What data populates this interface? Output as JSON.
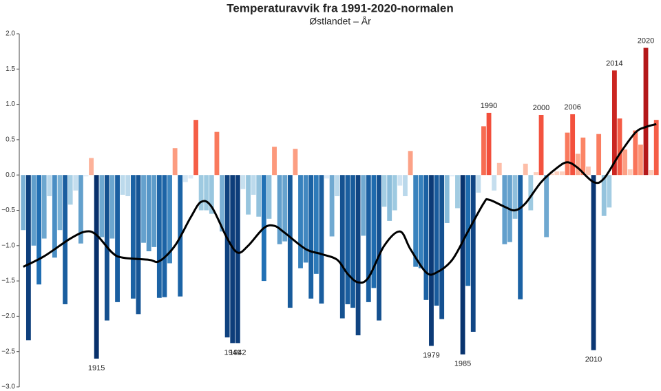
{
  "chart_data": {
    "type": "bar",
    "title": "Temperaturavvik fra 1991-2020-normalen",
    "subtitle": "Østlandet – År",
    "x": [
      1901,
      1902,
      1903,
      1904,
      1905,
      1906,
      1907,
      1908,
      1909,
      1910,
      1911,
      1912,
      1913,
      1914,
      1915,
      1916,
      1917,
      1918,
      1919,
      1920,
      1921,
      1922,
      1923,
      1924,
      1925,
      1926,
      1927,
      1928,
      1929,
      1930,
      1931,
      1932,
      1933,
      1934,
      1935,
      1936,
      1937,
      1938,
      1939,
      1940,
      1941,
      1942,
      1943,
      1944,
      1945,
      1946,
      1947,
      1948,
      1949,
      1950,
      1951,
      1952,
      1953,
      1954,
      1955,
      1956,
      1957,
      1958,
      1959,
      1960,
      1961,
      1962,
      1963,
      1964,
      1965,
      1966,
      1967,
      1968,
      1969,
      1970,
      1971,
      1972,
      1973,
      1974,
      1975,
      1976,
      1977,
      1978,
      1979,
      1980,
      1981,
      1982,
      1983,
      1984,
      1985,
      1986,
      1987,
      1988,
      1989,
      1990,
      1991,
      1992,
      1993,
      1994,
      1995,
      1996,
      1997,
      1998,
      1999,
      2000,
      2001,
      2002,
      2003,
      2004,
      2005,
      2006,
      2007,
      2008,
      2009,
      2010,
      2011,
      2012,
      2013,
      2014,
      2015,
      2016,
      2017,
      2018,
      2019,
      2020,
      2021,
      2022
    ],
    "values": [
      -0.78,
      -2.34,
      -1.0,
      -1.55,
      -0.9,
      -0.3,
      -1.17,
      -0.78,
      -1.83,
      -0.42,
      -0.22,
      -0.97,
      -0.02,
      0.24,
      -2.6,
      -0.88,
      -2.06,
      -0.9,
      -1.8,
      -0.28,
      -0.3,
      -1.75,
      -1.97,
      -0.96,
      -1.08,
      -1.02,
      -1.74,
      -1.73,
      -1.25,
      0.38,
      -1.72,
      -0.1,
      -0.05,
      0.78,
      -0.5,
      -0.5,
      -0.55,
      0.61,
      -0.8,
      -2.3,
      -2.38,
      -2.38,
      -0.2,
      -0.56,
      -0.28,
      -0.59,
      -1.5,
      -0.62,
      0.4,
      -0.98,
      -0.94,
      -1.88,
      0.37,
      -1.32,
      -1.24,
      -1.75,
      -1.4,
      -1.82,
      -0.05,
      -0.87,
      -0.3,
      -2.03,
      -1.83,
      -1.88,
      -2.27,
      -0.86,
      -1.8,
      -1.6,
      -2.06,
      -0.45,
      -0.65,
      -0.5,
      -0.15,
      -0.3,
      0.34,
      -1.3,
      -1.32,
      -1.77,
      -2.42,
      -1.85,
      -2.04,
      -0.68,
      -0.02,
      -0.47,
      -2.54,
      -1.57,
      -2.22,
      -0.25,
      0.69,
      0.88,
      -0.22,
      0.17,
      -0.98,
      -0.95,
      -0.62,
      -1.76,
      0.16,
      -0.5,
      0.04,
      0.85,
      -0.88,
      0.02,
      0.05,
      0.05,
      0.6,
      0.86,
      0.3,
      0.53,
      0.12,
      -2.48,
      0.58,
      -0.58,
      -0.46,
      1.48,
      0.8,
      0.36,
      0.08,
      0.63,
      0.43,
      1.8,
      0.07,
      0.78
    ],
    "color_stops": [
      {
        "value": -2.6,
        "color": "#08306b"
      },
      {
        "value": -1.5,
        "color": "#2171b5"
      },
      {
        "value": -0.5,
        "color": "#9ecae1"
      },
      {
        "value": 0,
        "color": "#e3eef9"
      },
      {
        "value": 0.01,
        "color": "#fdd5c4"
      },
      {
        "value": 0.5,
        "color": "#fc8a6a"
      },
      {
        "value": 1.0,
        "color": "#ef3b2c"
      },
      {
        "value": 2.0,
        "color": "#a50f15"
      }
    ],
    "trend": {
      "color": "#000000",
      "x": [
        1901,
        1905,
        1910,
        1913,
        1915,
        1918,
        1920,
        1925,
        1927,
        1930,
        1933,
        1935,
        1937,
        1940,
        1942,
        1944,
        1947,
        1949,
        1951,
        1955,
        1958,
        1961,
        1963,
        1965,
        1967,
        1970,
        1973,
        1975,
        1978,
        1980,
        1983,
        1986,
        1989,
        1990,
        1993,
        1995,
        1997,
        2000,
        2003,
        2005,
        2007,
        2010,
        2012,
        2015,
        2018,
        2020,
        2022
      ],
      "values": [
        -1.3,
        -1.15,
        -0.9,
        -0.8,
        -0.85,
        -1.1,
        -1.17,
        -1.2,
        -1.22,
        -1.0,
        -0.6,
        -0.38,
        -0.45,
        -0.9,
        -1.1,
        -1.0,
        -0.75,
        -0.72,
        -0.82,
        -1.05,
        -1.12,
        -1.2,
        -1.4,
        -1.52,
        -1.45,
        -1.0,
        -0.8,
        -1.05,
        -1.38,
        -1.38,
        -1.2,
        -0.8,
        -0.4,
        -0.35,
        -0.45,
        -0.5,
        -0.4,
        -0.1,
        0.1,
        0.18,
        0.1,
        -0.1,
        -0.05,
        0.3,
        0.6,
        0.68,
        0.72
      ]
    },
    "annotations": [
      {
        "x": 1915,
        "label": "1915"
      },
      {
        "x": 1941,
        "label": "1941"
      },
      {
        "x": 1942,
        "label": "1942"
      },
      {
        "x": 1979,
        "label": "1979"
      },
      {
        "x": 1985,
        "label": "1985"
      },
      {
        "x": 1990,
        "label": "1990"
      },
      {
        "x": 2000,
        "label": "2000"
      },
      {
        "x": 2006,
        "label": "2006"
      },
      {
        "x": 2010,
        "label": "2010"
      },
      {
        "x": 2014,
        "label": "2014"
      },
      {
        "x": 2020,
        "label": "2020"
      }
    ],
    "xlim": [
      1900.5,
      2022.5
    ],
    "ylim": [
      -3,
      2
    ],
    "yticks": [
      {
        "value": 2,
        "label": "2.0"
      },
      {
        "value": 1.5,
        "label": "1.5"
      },
      {
        "value": 1,
        "label": "1.0"
      },
      {
        "value": 0.5,
        "label": "0.5"
      },
      {
        "value": 0,
        "label": "0.0"
      },
      {
        "value": -0.5,
        "label": "−0.5"
      },
      {
        "value": -1,
        "label": "−1.0"
      },
      {
        "value": -1.5,
        "label": "−1.5"
      },
      {
        "value": -2,
        "label": "−2.0"
      },
      {
        "value": -2.5,
        "label": "−2.5"
      },
      {
        "value": -3,
        "label": "−3.0"
      }
    ]
  }
}
